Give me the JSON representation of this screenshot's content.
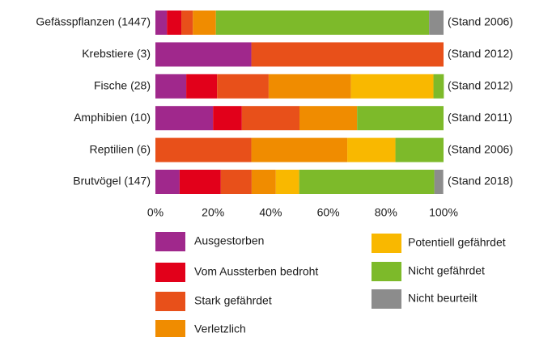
{
  "chart_data": {
    "type": "stacked_bar_horizontal",
    "categories": [
      "Gefässpflanzen (1447)",
      "Krebstiere (3)",
      "Fische (28)",
      "Amphibien (10)",
      "Reptilien (6)",
      "Brutvögel (147)"
    ],
    "annotations": [
      "(Stand 2006)",
      "(Stand 2012)",
      "(Stand 2012)",
      "(Stand 2011)",
      "(Stand 2006)",
      "(Stand 2018)"
    ],
    "series": [
      {
        "name": "Ausgestorben",
        "color": "#a0288c",
        "values": [
          4,
          33.3,
          10.7,
          20,
          0,
          8.4
        ]
      },
      {
        "name": "Vom Aussterben bedroht",
        "color": "#e2001a",
        "values": [
          5,
          0,
          10.7,
          10,
          0,
          14.3
        ]
      },
      {
        "name": "Stark gefährdet",
        "color": "#e8501a",
        "values": [
          4,
          66.7,
          17.9,
          20,
          33.3,
          10.7
        ]
      },
      {
        "name": "Verletzlich",
        "color": "#f08c00",
        "values": [
          8,
          0,
          28.6,
          20,
          33.3,
          8.4
        ]
      },
      {
        "name": "Potentiell gefährdet",
        "color": "#f9b800",
        "values": [
          0,
          0,
          28.6,
          0,
          16.7,
          8.1
        ]
      },
      {
        "name": "Nicht gefährdet",
        "color": "#7dba2a",
        "values": [
          74,
          0,
          3.6,
          30,
          16.7,
          46.9
        ]
      },
      {
        "name": "Nicht beurteilt",
        "color": "#8c8c8c",
        "values": [
          5,
          0,
          0,
          0,
          0,
          3.1
        ]
      }
    ],
    "xlim": [
      0,
      100
    ],
    "xticks": [
      {
        "value": 0,
        "label": "0%"
      },
      {
        "value": 20,
        "label": "20%"
      },
      {
        "value": 40,
        "label": "40%"
      },
      {
        "value": 60,
        "label": "60%"
      },
      {
        "value": 80,
        "label": "80%"
      },
      {
        "value": 100,
        "label": "100%"
      }
    ],
    "grid": false
  }
}
